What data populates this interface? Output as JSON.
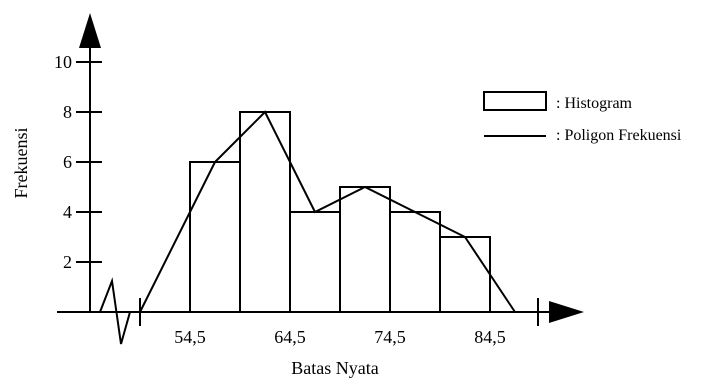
{
  "chart_data": {
    "type": "bar",
    "subtype": "histogram-with-frequency-polygon",
    "xlabel": "Batas Nyata",
    "ylabel": "Frekuensi",
    "ylim": [
      0,
      10
    ],
    "yticks": [
      2,
      4,
      6,
      8,
      10
    ],
    "ytick_labels": [
      "2",
      "4",
      "6",
      "8",
      "10"
    ],
    "xticks": [
      54.5,
      64.5,
      74.5,
      84.5
    ],
    "xtick_labels": [
      "54,5",
      "64,5",
      "74,5",
      "84,5"
    ],
    "bin_edges": [
      54.5,
      59.5,
      64.5,
      69.5,
      74.5,
      79.5,
      84.5
    ],
    "frequencies": [
      6,
      8,
      4,
      5,
      4,
      3
    ],
    "polygon": {
      "x": [
        49.5,
        57,
        62,
        67,
        72,
        77,
        82,
        87
      ],
      "y": [
        0,
        6,
        8,
        4,
        5,
        4,
        3,
        0
      ]
    },
    "axis_break": true,
    "legend": {
      "placement": "top-right",
      "entries": [
        {
          "kind": "box",
          "label": ": Histogram"
        },
        {
          "kind": "line",
          "label": ": Poligon Frekuensi"
        }
      ]
    },
    "grid": false
  }
}
